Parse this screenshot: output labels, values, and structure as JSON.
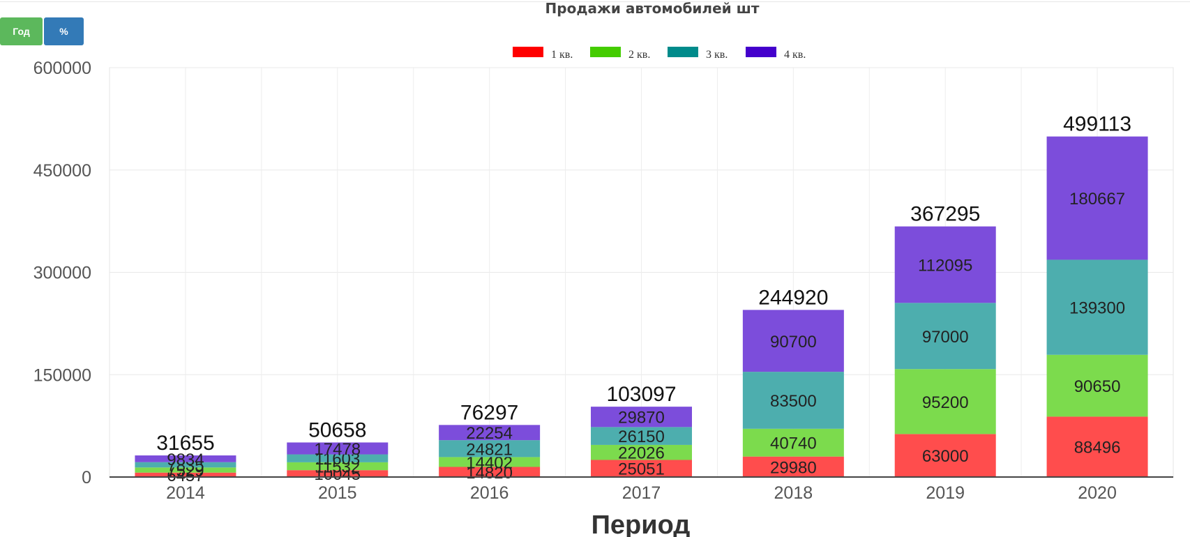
{
  "toolbar": {
    "year_label": "Год",
    "percent_label": "%",
    "year_color": "#5cb85c",
    "percent_color": "#337ab7"
  },
  "chart_data": {
    "type": "bar",
    "stacked": true,
    "title": "Продажи автомобилей шт",
    "xlabel": "Период",
    "ylabel": "",
    "categories": [
      "2014",
      "2015",
      "2016",
      "2017",
      "2018",
      "2019",
      "2020"
    ],
    "series": [
      {
        "name": "1 кв.",
        "color": "#ff0000",
        "values": [
          6457,
          10045,
          14820,
          25051,
          29980,
          63000,
          88496
        ]
      },
      {
        "name": "2 кв.",
        "color": "#44cc00",
        "values": [
          7529,
          11532,
          14402,
          22026,
          40740,
          95200,
          90650
        ]
      },
      {
        "name": "3 кв.",
        "color": "#008b8b",
        "values": [
          7835,
          11603,
          24821,
          26150,
          83500,
          97000,
          139300
        ]
      },
      {
        "name": "4 кв.",
        "color": "#4400cc",
        "values": [
          9834,
          17478,
          22254,
          29870,
          90700,
          112095,
          180667
        ]
      }
    ],
    "totals": [
      31655,
      50658,
      76297,
      103097,
      244920,
      367295,
      499113
    ],
    "ylim": [
      0,
      600000
    ],
    "yticks": [
      0,
      150000,
      300000,
      450000,
      600000
    ],
    "grid": true,
    "legend": "top-center"
  }
}
